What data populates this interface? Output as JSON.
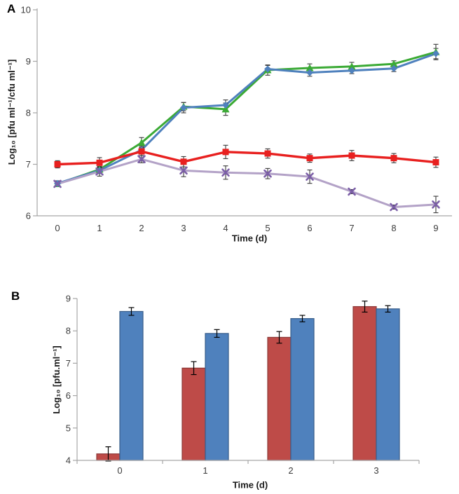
{
  "figure": {
    "background": "#ffffff",
    "axis_color": "#a6a6a6",
    "tick_text_color": "#3c3c3c",
    "error_bar_color_line_chart": "#3a3a3a",
    "error_bar_color_bar_chart": "#000000"
  },
  "chart_data": [
    {
      "type": "line",
      "panel_label": "A",
      "title": "",
      "xlabel": "Time (d)",
      "ylabel": "Log₁₀ [pfu ml⁻¹/cfu ml⁻¹]",
      "x_ticks": [
        "0",
        "1",
        "2",
        "3",
        "4",
        "5",
        "6",
        "7",
        "8",
        "9"
      ],
      "x": [
        0,
        1,
        2,
        3,
        4,
        5,
        6,
        7,
        8,
        9
      ],
      "ylim": [
        6,
        10
      ],
      "yticks": [
        6,
        7,
        8,
        9,
        10
      ],
      "grid": false,
      "legend": "none",
      "series": [
        {
          "name": "green-triangle-series",
          "marker": "triangle",
          "color": "#3BAA35",
          "marker_color": "#3BAA35",
          "values": [
            6.62,
            6.9,
            7.42,
            8.12,
            8.07,
            8.83,
            8.87,
            8.9,
            8.95,
            9.18
          ],
          "errors": [
            0.05,
            0.06,
            0.1,
            0.08,
            0.12,
            0.1,
            0.08,
            0.08,
            0.06,
            0.15
          ]
        },
        {
          "name": "blue-diamond-series",
          "marker": "diamond",
          "color": "#4F81BD",
          "marker_color": "#4F81BD",
          "values": [
            6.63,
            6.88,
            7.28,
            8.1,
            8.15,
            8.85,
            8.78,
            8.82,
            8.86,
            9.15
          ],
          "errors": [
            0.05,
            0.06,
            0.07,
            0.1,
            0.1,
            0.07,
            0.07,
            0.06,
            0.06,
            0.1
          ]
        },
        {
          "name": "red-square-series",
          "marker": "square",
          "color": "#E8201F",
          "marker_color": "#E8201F",
          "values": [
            7.0,
            7.03,
            7.25,
            7.05,
            7.24,
            7.21,
            7.12,
            7.17,
            7.12,
            7.04
          ],
          "errors": [
            0.07,
            0.1,
            0.08,
            0.1,
            0.13,
            0.09,
            0.08,
            0.1,
            0.09,
            0.1
          ]
        },
        {
          "name": "purple-x-series",
          "marker": "x",
          "color": "#B3A2C7",
          "marker_color": "#7C5FA8",
          "values": [
            6.62,
            6.86,
            7.1,
            6.88,
            6.84,
            6.82,
            6.76,
            6.47,
            6.17,
            6.22
          ],
          "errors": [
            0.05,
            0.09,
            0.07,
            0.12,
            0.13,
            0.1,
            0.13,
            0.04,
            0.04,
            0.16
          ]
        }
      ]
    },
    {
      "type": "bar",
      "panel_label": "B",
      "title": "",
      "xlabel": "Time (d)",
      "ylabel": "Log₁₀ [pfu.ml⁻¹]",
      "categories": [
        "0",
        "1",
        "2",
        "3"
      ],
      "ylim": [
        4,
        9
      ],
      "yticks": [
        4,
        5,
        6,
        7,
        8,
        9
      ],
      "grid": false,
      "legend": "none",
      "series": [
        {
          "name": "red-bar-series",
          "color": "#BE4B48",
          "border_color": "#8C3836",
          "values": [
            4.2,
            6.85,
            7.8,
            8.75
          ],
          "errors": [
            0.22,
            0.2,
            0.18,
            0.17
          ]
        },
        {
          "name": "blue-bar-series",
          "color": "#4F81BD",
          "border_color": "#385D8A",
          "values": [
            8.6,
            7.92,
            8.38,
            8.68
          ],
          "errors": [
            0.12,
            0.12,
            0.1,
            0.1
          ]
        }
      ]
    }
  ]
}
